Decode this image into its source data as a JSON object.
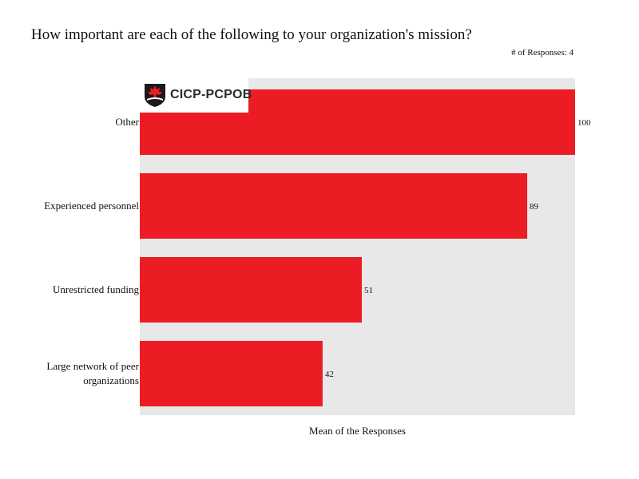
{
  "chart_data": {
    "type": "bar",
    "orientation": "horizontal",
    "title": "How important are each of the following to your organization's mission?",
    "note": "# of Responses: 4",
    "categories": [
      "Other",
      "Experienced personnel",
      "Unrestricted funding",
      "Large network of peer organizations"
    ],
    "values": [
      100,
      89,
      51,
      42
    ],
    "xlabel": "Mean of the Responses",
    "ylabel": "",
    "xlim": [
      0,
      100
    ],
    "grid": false,
    "legend": "none",
    "bar_color": "#ec1c24",
    "background_color": "#e8e8e8"
  },
  "logo": {
    "text": "CICP-PCPOB",
    "icon": "maple-leaf-shield-icon"
  }
}
